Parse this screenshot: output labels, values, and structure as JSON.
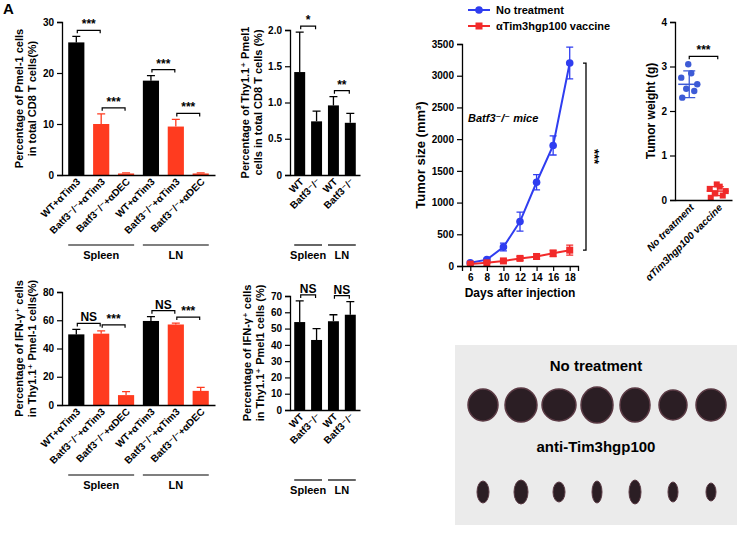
{
  "panel_label": "A",
  "chart_data": [
    {
      "type": "bar",
      "y_label": "Percentage of Pmel-1 cells in total CD8 T cells(%)",
      "categories": [
        "WT+αTim3",
        "Batf3⁻/⁻+αTim3",
        "Batf3⁻/⁻+αDEC",
        "WT+αTim3",
        "Batf3⁻/⁻+αTim3",
        "Batf3⁻/⁻+αDEC"
      ],
      "values": [
        26,
        10,
        0.3,
        18.5,
        9.5,
        0.3
      ],
      "errors": [
        1.2,
        2,
        0.1,
        1,
        1.4,
        0.1
      ],
      "colors": [
        "#000000",
        "#ff3b1f",
        "#ff3b1f",
        "#000000",
        "#ff3b1f",
        "#ff3b1f"
      ],
      "groups": [
        "Spleen",
        "LN"
      ],
      "annotations": [
        "***",
        "***",
        "***",
        "***"
      ],
      "ylim": [
        0,
        30
      ],
      "yticks": [
        0,
        10,
        20,
        30
      ]
    },
    {
      "type": "bar",
      "y_label": "Percentage of Thy1.1⁺ Pmel1 cells in total CD8 T cells (%)",
      "categories": [
        "WT",
        "Batf3⁻/⁻",
        "WT",
        "Batf3⁻/⁻"
      ],
      "values": [
        1.42,
        0.74,
        0.96,
        0.72
      ],
      "errors": [
        0.55,
        0.14,
        0.12,
        0.13
      ],
      "colors": [
        "#000000",
        "#000000",
        "#000000",
        "#000000"
      ],
      "groups": [
        "Spleen",
        "LN"
      ],
      "annotations": [
        "*",
        "**"
      ],
      "ylim": [
        0,
        2
      ],
      "yticks": [
        0,
        0.5,
        {
          "value": 1,
          "label": "1.0"
        },
        1.5,
        {
          "value": 2,
          "label": "2.0"
        }
      ]
    },
    {
      "type": "line",
      "x_label": "Days after injection",
      "y_label": "Tumor size (mm³)",
      "subtitle": "Batf3⁻/⁻ mice",
      "x": [
        6,
        8,
        10,
        12,
        14,
        16,
        18
      ],
      "series": [
        {
          "name": "No treatment",
          "color": "#2f3df0",
          "marker": "circle",
          "values": [
            50,
            100,
            300,
            700,
            1320,
            1900,
            3200
          ],
          "errors": [
            10,
            20,
            60,
            150,
            120,
            150,
            250
          ]
        },
        {
          "name": "αTim3hgp100 vaccine",
          "color": "#f22a2a",
          "marker": "square",
          "values": [
            30,
            50,
            80,
            120,
            150,
            200,
            250
          ],
          "errors": [
            5,
            10,
            20,
            30,
            40,
            50,
            80
          ]
        }
      ],
      "annotations": [
        "***"
      ],
      "legend": "top-left",
      "xlim": [
        5,
        19
      ],
      "xticks": [
        6,
        8,
        10,
        12,
        14,
        16,
        18
      ],
      "ylim": [
        0,
        3500
      ],
      "yticks": [
        0,
        500,
        1000,
        1500,
        2000,
        2500,
        3000,
        3500
      ]
    },
    {
      "type": "scatter",
      "y_label": "Tumor weight (g)",
      "categories": [
        "No treatment",
        "αTim3hgp100 vaccine"
      ],
      "values": [
        [
          2.3,
          2.45,
          2.5,
          2.6,
          2.75,
          2.85,
          3.05
        ],
        [
          0.05,
          0.1,
          0.15,
          0.2,
          0.25,
          0.3,
          0.35
        ]
      ],
      "means": [
        2.6,
        0.2
      ],
      "errors": [
        0.3,
        0.1
      ],
      "colors": [
        "#3d5bd6",
        "#f02a2a"
      ],
      "annotations": [
        "***"
      ],
      "ylim": [
        0,
        4
      ],
      "yticks": [
        0,
        1,
        2,
        3,
        4
      ]
    },
    {
      "type": "bar",
      "y_label": "Percentage of IFN-γ⁺ cells in Thy1.1⁺ Pmel-1 cells(%)",
      "categories": [
        "WT+αTim3",
        "Batf3⁻/⁻+αTim3",
        "Batf3⁻/⁻+αDEC",
        "WT+αTim3",
        "Batf3⁻/⁻+αTim3",
        "Batf3⁻/⁻+αDEC"
      ],
      "values": [
        50,
        50.5,
        7,
        59.5,
        57,
        10
      ],
      "errors": [
        3.5,
        2,
        2.5,
        3,
        1,
        2.5
      ],
      "colors": [
        "#000000",
        "#ff3b1f",
        "#ff3b1f",
        "#000000",
        "#ff3b1f",
        "#ff3b1f"
      ],
      "groups": [
        "Spleen",
        "LN"
      ],
      "annotations": [
        "NS",
        "***",
        "NS",
        "***"
      ],
      "ylim": [
        0,
        80
      ],
      "yticks": [
        0,
        20,
        40,
        60,
        80
      ]
    },
    {
      "type": "bar",
      "y_label": "Percentage of IFN-γ⁺ cells in Thy1.1⁺ Pmel1 cells (%)",
      "categories": [
        "WT",
        "Batf3⁻/⁻",
        "WT",
        "Batf3⁻/⁻"
      ],
      "values": [
        54,
        43,
        54.5,
        58.5
      ],
      "errors": [
        13,
        7,
        4,
        8
      ],
      "colors": [
        "#000000",
        "#000000",
        "#000000",
        "#000000"
      ],
      "groups": [
        "Spleen",
        "LN"
      ],
      "annotations": [
        "NS",
        "NS"
      ],
      "ylim": [
        0,
        70
      ],
      "yticks": [
        0,
        10,
        20,
        30,
        40,
        50,
        60,
        70
      ]
    }
  ],
  "photo": {
    "labels": [
      "No treatment",
      "anti-Tim3hgp100"
    ]
  }
}
